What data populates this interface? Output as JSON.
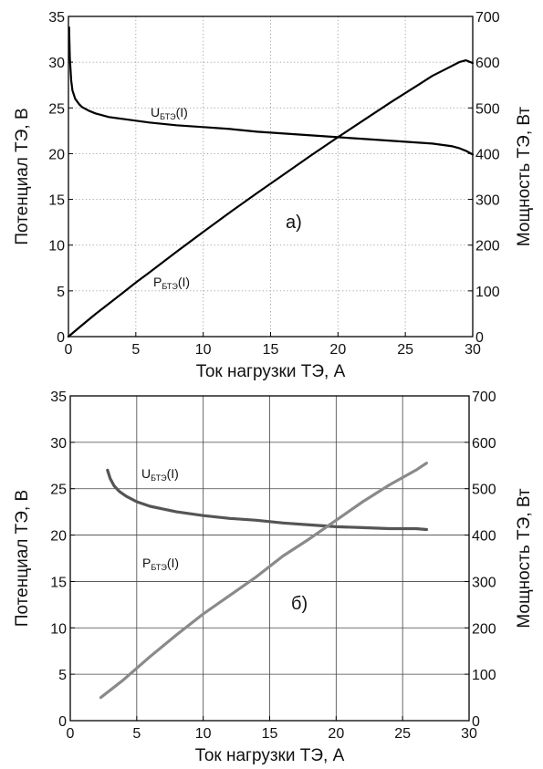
{
  "chart_data": [
    {
      "panel": "a",
      "type": "line",
      "panel_label": "а)",
      "xlabel": "Ток нагрузки ТЭ, А",
      "ylabel_left": "Потенциал ТЭ, В",
      "ylabel_right": "Мощность ТЭ, Вт",
      "xlim": [
        0,
        30
      ],
      "ylim_left": [
        0,
        35
      ],
      "ylim_right": [
        0,
        700
      ],
      "xticks": [
        "0",
        "5",
        "10",
        "15",
        "20",
        "25",
        "30"
      ],
      "yticks_left": [
        "0",
        "5",
        "10",
        "15",
        "20",
        "25",
        "30",
        "35"
      ],
      "yticks_right": [
        "0",
        "100",
        "200",
        "300",
        "400",
        "500",
        "600",
        "700"
      ],
      "grid": "dotted",
      "series": [
        {
          "name": "UБТЭ(I)",
          "label_main": "U",
          "label_sub": "БТЭ",
          "label_tail": "(I)",
          "axis": "left",
          "x": [
            0.05,
            0.1,
            0.2,
            0.3,
            0.5,
            0.8,
            1,
            1.5,
            2,
            3,
            4,
            5,
            6,
            8,
            10,
            12,
            14,
            16,
            18,
            20,
            22,
            24,
            26,
            27,
            28,
            28.5,
            29,
            29.5,
            30
          ],
          "y": [
            33.8,
            30.5,
            28.0,
            26.9,
            26.0,
            25.4,
            25.1,
            24.7,
            24.4,
            24.0,
            23.8,
            23.6,
            23.4,
            23.1,
            22.9,
            22.7,
            22.4,
            22.2,
            22.0,
            21.8,
            21.6,
            21.4,
            21.2,
            21.1,
            20.9,
            20.8,
            20.6,
            20.3,
            19.9
          ]
        },
        {
          "name": "PБТЭ(I)",
          "label_main": "P",
          "label_sub": "БТЭ",
          "label_tail": "(I)",
          "axis": "right",
          "x": [
            0,
            1,
            2,
            3,
            4,
            5,
            6,
            8,
            10,
            12,
            14,
            16,
            18,
            20,
            22,
            24,
            26,
            27,
            28,
            29,
            29.5,
            30
          ],
          "y": [
            0,
            25,
            49,
            72,
            95,
            118,
            140,
            185,
            229,
            272,
            314,
            355,
            396,
            436,
            475,
            514,
            551,
            570,
            585,
            600,
            604,
            598
          ]
        }
      ]
    },
    {
      "panel": "b",
      "type": "line",
      "panel_label": "б)",
      "xlabel": "Ток нагрузки ТЭ, А",
      "ylabel_left": "Потенциал ТЭ, В",
      "ylabel_right": "Мощность ТЭ, Вт",
      "xlim": [
        0,
        30
      ],
      "ylim_left": [
        0,
        35
      ],
      "ylim_right": [
        0,
        700
      ],
      "xticks": [
        "0",
        "5",
        "10",
        "15",
        "20",
        "25",
        "30"
      ],
      "yticks_left": [
        "0",
        "5",
        "10",
        "15",
        "20",
        "25",
        "30",
        "35"
      ],
      "yticks_right": [
        "0",
        "100",
        "200",
        "300",
        "400",
        "500",
        "600",
        "700"
      ],
      "grid": "solid",
      "series": [
        {
          "name": "UБТЭ(I)",
          "label_main": "U",
          "label_sub": "БТЭ",
          "label_tail": "(I)",
          "axis": "left",
          "x": [
            2.8,
            3.0,
            3.3,
            3.7,
            4.2,
            5,
            6,
            7,
            8,
            10,
            12,
            14,
            16,
            18,
            20,
            22,
            24,
            26,
            26.8
          ],
          "y": [
            27.0,
            26.1,
            25.3,
            24.7,
            24.2,
            23.6,
            23.1,
            22.8,
            22.5,
            22.1,
            21.8,
            21.6,
            21.3,
            21.1,
            20.9,
            20.8,
            20.7,
            20.7,
            20.6
          ]
        },
        {
          "name": "PБТЭ(I)",
          "label_main": "P",
          "label_sub": "БТЭ",
          "label_tail": "(I)",
          "axis": "right",
          "x": [
            2.3,
            4,
            6,
            8,
            10,
            12,
            14,
            16,
            18,
            20,
            22,
            24,
            26,
            26.8
          ],
          "y": [
            50,
            88,
            138,
            185,
            230,
            270,
            310,
            355,
            392,
            432,
            472,
            508,
            540,
            555
          ]
        }
      ]
    }
  ]
}
